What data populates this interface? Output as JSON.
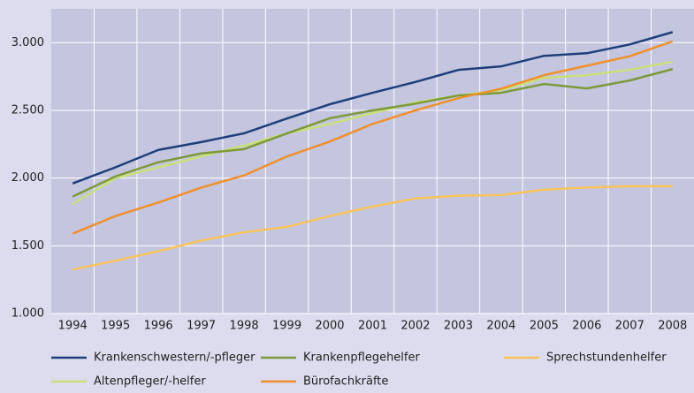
{
  "chart_data": {
    "type": "line",
    "categories": [
      "1994",
      "1995",
      "1996",
      "1997",
      "1998",
      "1999",
      "2000",
      "2001",
      "2002",
      "2003",
      "2004",
      "2005",
      "2006",
      "2007",
      "2008"
    ],
    "series": [
      {
        "name": "Krankenschwestern/-pfleger",
        "color": "#1f3f7a",
        "values": [
          1961,
          2080,
          2208,
          2266,
          2331,
          2440,
          2545,
          2630,
          2710,
          2799,
          2825,
          2903,
          2922,
          2987,
          3078
        ]
      },
      {
        "name": "Krankenpflegehelfer",
        "color": "#7d9a3a",
        "values": [
          1864,
          2013,
          2117,
          2182,
          2214,
          2330,
          2442,
          2500,
          2550,
          2610,
          2630,
          2695,
          2662,
          2721,
          2805
        ]
      },
      {
        "name": "Sprechstundenhelfer",
        "color": "#f8c45a",
        "values": [
          1325,
          1390,
          1460,
          1539,
          1600,
          1640,
          1720,
          1790,
          1850,
          1870,
          1875,
          1915,
          1930,
          1940,
          1940
        ]
      },
      {
        "name": "Altenpfleger/-helfer",
        "color": "#c9e07a",
        "values": [
          1810,
          2000,
          2080,
          2160,
          2240,
          2330,
          2400,
          2480,
          2560,
          2610,
          2650,
          2740,
          2760,
          2800,
          2860
        ]
      },
      {
        "name": "Bürofachkräfte",
        "color": "#f0902a",
        "values": [
          1590,
          1720,
          1820,
          1930,
          2020,
          2160,
          2270,
          2400,
          2500,
          2590,
          2660,
          2760,
          2830,
          2900,
          3010
        ]
      }
    ],
    "ylim": [
      1000,
      3250
    ],
    "yticks": [
      {
        "value": 1000,
        "label": "1.000"
      },
      {
        "value": 1500,
        "label": "1.500"
      },
      {
        "value": 2000,
        "label": "2.000"
      },
      {
        "value": 2500,
        "label": "2.500"
      },
      {
        "value": 3000,
        "label": "3.000"
      }
    ],
    "grid": true
  }
}
